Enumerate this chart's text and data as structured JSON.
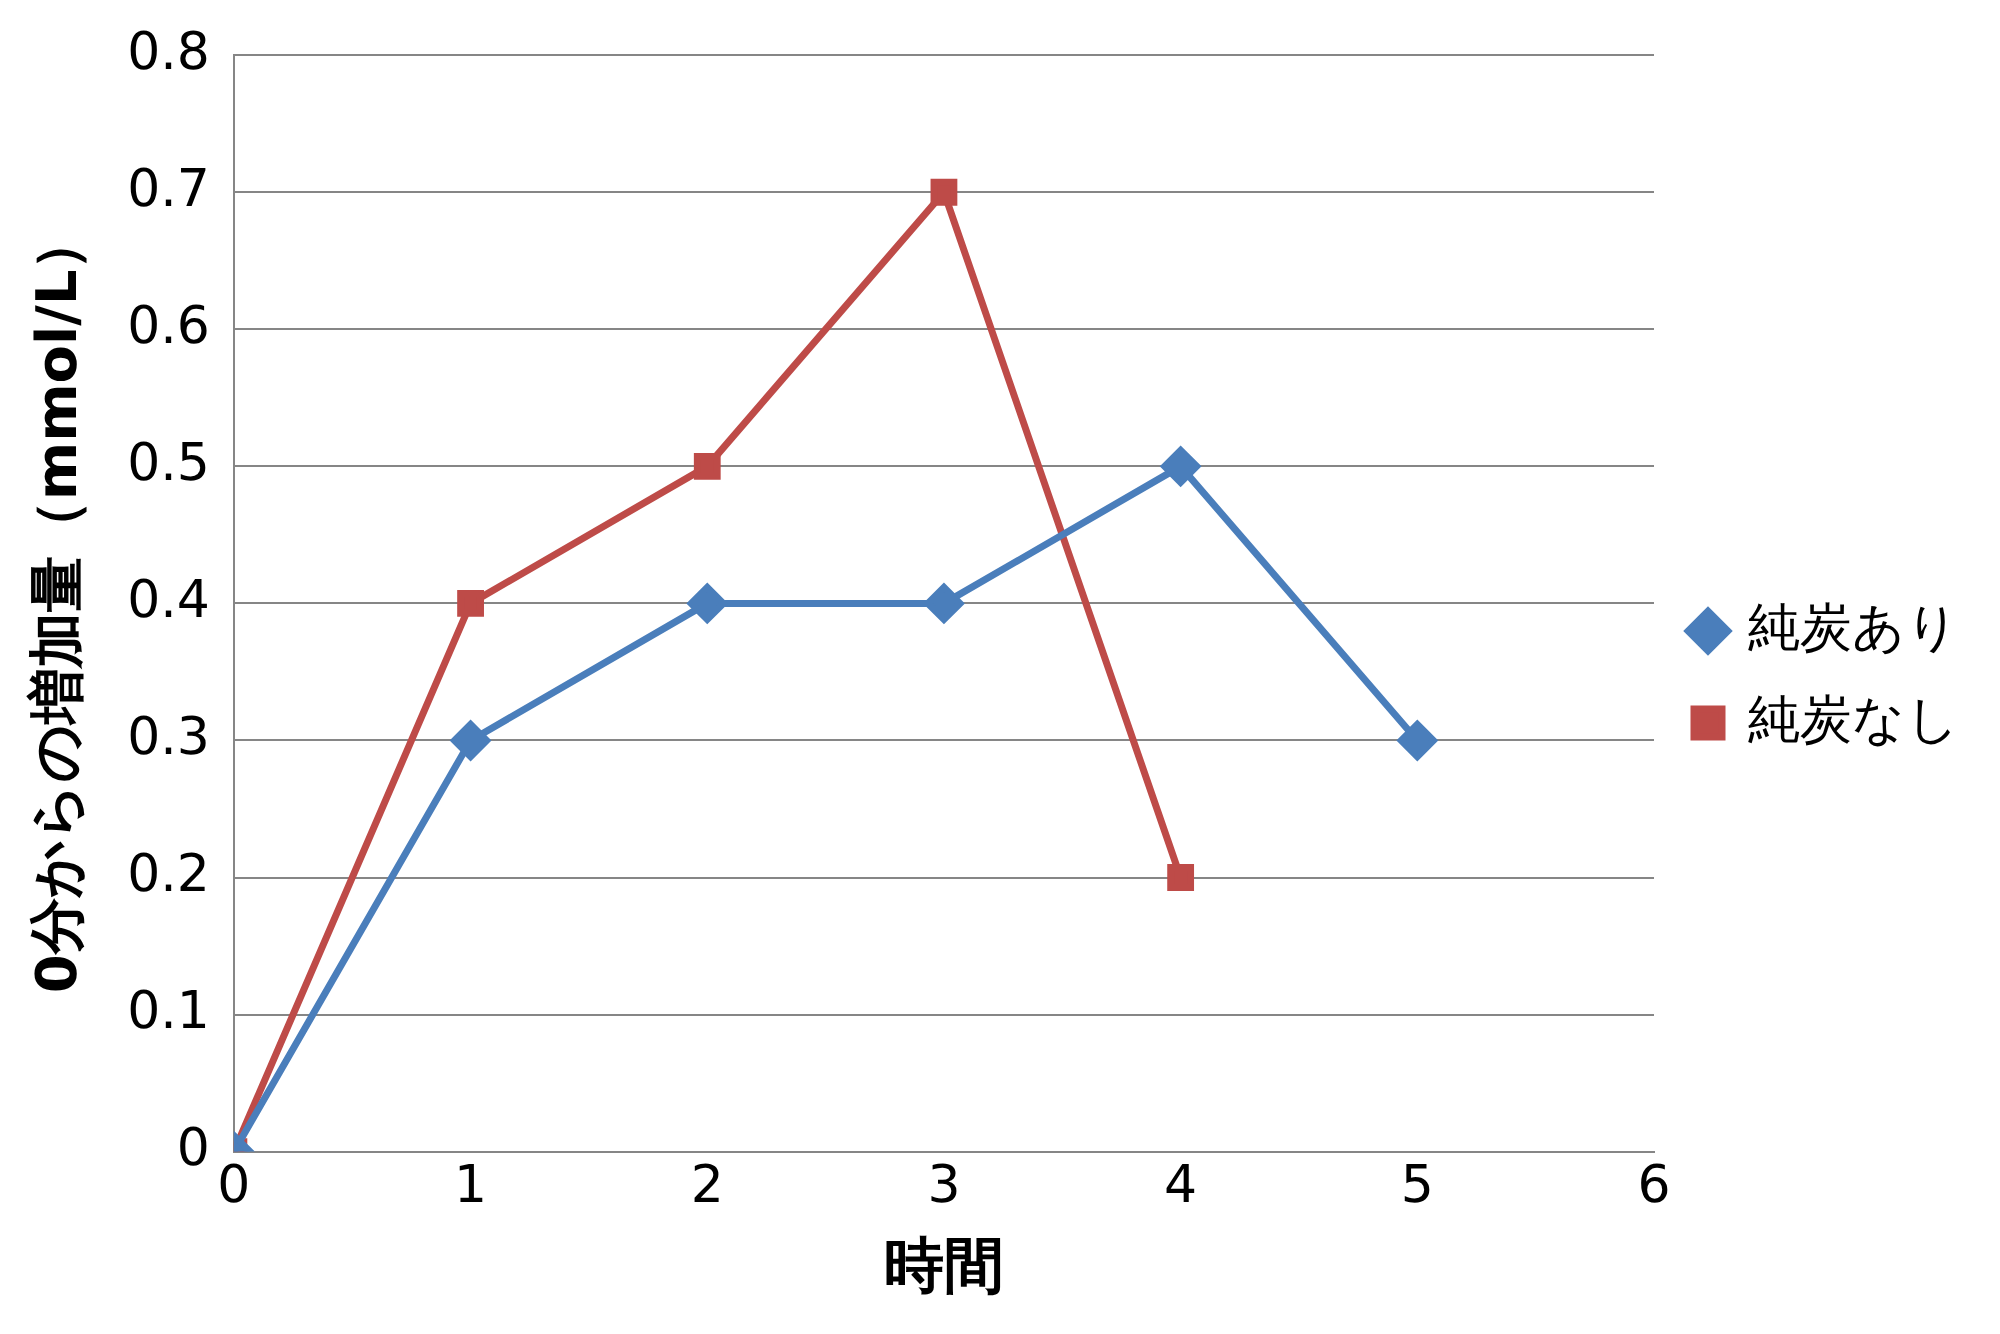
{
  "chart_data": {
    "type": "line",
    "xlabel": "時間",
    "ylabel": "0分からの増加量（mmol/L）",
    "xlim": [
      0,
      6
    ],
    "xticks": [
      0,
      1,
      2,
      3,
      4,
      5,
      6
    ],
    "ylim": [
      0,
      0.8
    ],
    "yticks": [
      0,
      0.1,
      0.2,
      0.3,
      0.4,
      0.5,
      0.6,
      0.7,
      0.8
    ],
    "grid": "y",
    "legend": "right",
    "series": [
      {
        "name": "純炭あり",
        "color": "#4a7ebb",
        "marker": "diamond",
        "x": [
          0,
          1,
          2,
          3,
          4,
          5
        ],
        "values": [
          0,
          0.3,
          0.4,
          0.4,
          0.5,
          0.3
        ]
      },
      {
        "name": "純炭なし",
        "color": "#be4b48",
        "marker": "square",
        "x": [
          0,
          1,
          2,
          3,
          4
        ],
        "values": [
          0,
          0.4,
          0.5,
          0.7,
          0.2
        ]
      }
    ]
  }
}
